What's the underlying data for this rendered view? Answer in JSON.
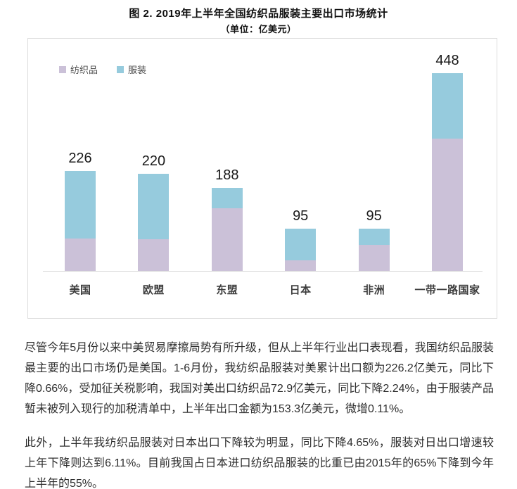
{
  "header": {
    "title": "图 2. 2019年上半年全国纺织品服装主要出口市场统计",
    "subtitle": "（单位：亿美元）"
  },
  "chart_data": {
    "type": "bar",
    "stacked": true,
    "title": "图 2. 2019年上半年全国纺织品服装主要出口市场统计",
    "unit_label": "（单位：亿美元）",
    "categories": [
      "美国",
      "欧盟",
      "东盟",
      "日本",
      "非洲",
      "一带一路国家"
    ],
    "series": [
      {
        "name": "纺织品",
        "color": "#cbc1d8",
        "values": [
          72.9,
          72,
          142,
          24,
          59,
          300
        ]
      },
      {
        "name": "服装",
        "color": "#96cbdd",
        "values": [
          153.3,
          148,
          46,
          71,
          36,
          148
        ]
      }
    ],
    "totals": [
      226.2,
      220,
      188,
      95,
      95,
      448
    ],
    "total_labels": [
      "226",
      "220",
      "188",
      "95",
      "95",
      "448"
    ],
    "xlabel": "",
    "ylabel": "",
    "ylim": [
      0,
      480
    ],
    "grid": false,
    "legend_position": "top-left",
    "colors": {
      "textile": "#cbc1d8",
      "apparel": "#96cbdd",
      "panel_border": "#dcdcdc",
      "axis_line": "#d9d9d9"
    }
  },
  "paragraphs": [
    "尽管今年5月份以来中美贸易摩擦局势有所升级，但从上半年行业出口表现看，我国纺织品服装最主要的出口市场仍是美国。1-6月份，我纺织品服装对美累计出口额为226.2亿美元，同比下降0.66%，受加征关税影响，我国对美出口纺织品72.9亿美元，同比下降2.24%，由于服装产品暂未被列入现行的加税清单中，上半年出口金额为153.3亿美元，微增0.11%。",
    "此外，上半年我纺织品服装对日本出口下降较为明显，同比下降4.65%，服装对日出口增速较上年下降则达到6.11%。目前我国占日本进口纺织品服装的比重已由2015年的65%下降到今年上半年的55%。"
  ]
}
